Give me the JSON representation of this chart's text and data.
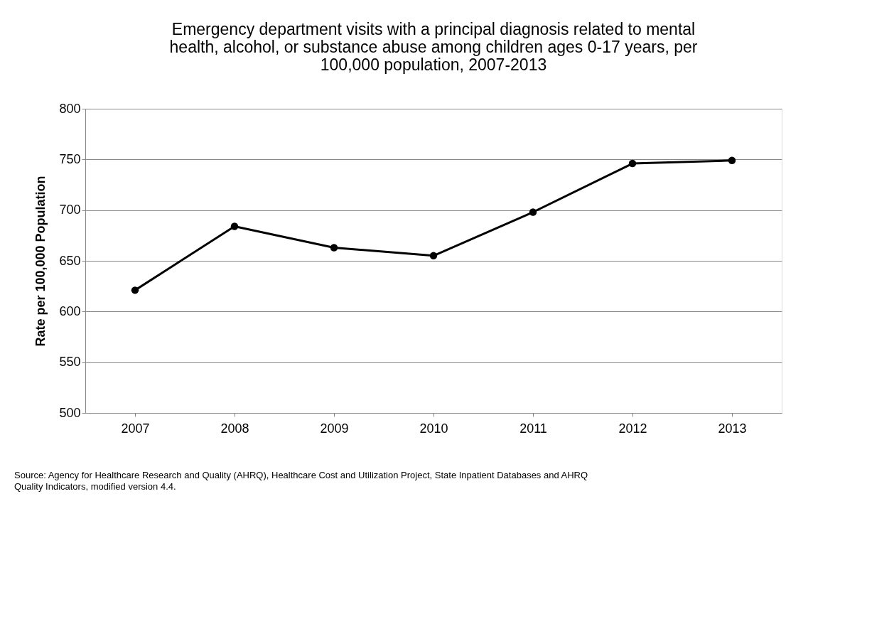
{
  "chart_data": {
    "type": "line",
    "title": "Emergency department visits with a principal diagnosis related to mental health, alcohol, or substance abuse among children ages 0-17 years, per 100,000 population, 2007-2013",
    "categories": [
      "2007",
      "2008",
      "2009",
      "2010",
      "2011",
      "2012",
      "2013"
    ],
    "series": [
      {
        "color": "#000000",
        "values": [
          621,
          684,
          663,
          655,
          698,
          746,
          749
        ]
      }
    ],
    "ylabel": "Rate per 100,000 Population",
    "ylim": [
      500,
      800
    ],
    "yticks": [
      500,
      550,
      600,
      650,
      700,
      750,
      800
    ],
    "grid": "y",
    "marker": "circle",
    "line_style": "solid",
    "legend": false,
    "annotations": [
      "Source: Agency for Healthcare Research and Quality (AHRQ), Healthcare Cost and Utilization Project, State Inpatient Databases and AHRQ Quality Indicators, modified version 4.4."
    ]
  }
}
